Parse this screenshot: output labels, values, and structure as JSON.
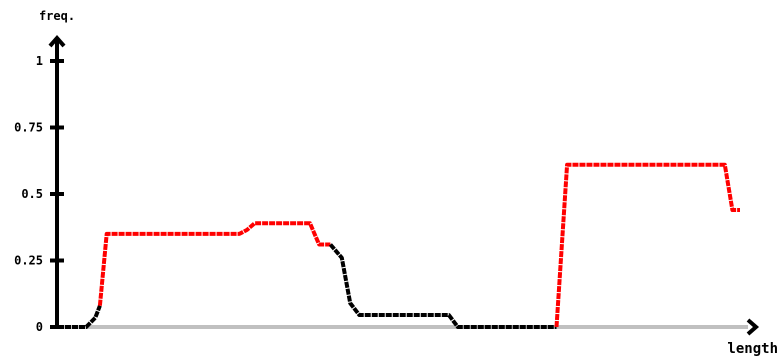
{
  "chart_data": {
    "type": "line",
    "xlabel": "length",
    "ylabel": "freq.",
    "ylim": [
      0,
      1
    ],
    "yticks": [
      {
        "value": 0,
        "label": "0"
      },
      {
        "value": 0.25,
        "label": "0.25"
      },
      {
        "value": 0.5,
        "label": "0.5"
      },
      {
        "value": 0.75,
        "label": "0.75"
      },
      {
        "value": 1,
        "label": "1"
      }
    ],
    "grid": false,
    "legend": "none",
    "colors": {
      "axis": "#000000",
      "baseline": "#c0c0c0",
      "segment_red": "#ff0000",
      "segment_black": "#000000"
    },
    "series": [
      {
        "points": [
          {
            "x": 0.0,
            "y": 0.0,
            "c": "black"
          },
          {
            "x": 2.8,
            "y": 0.0,
            "c": "black"
          },
          {
            "x": 4.0,
            "y": 0.035,
            "c": "black"
          },
          {
            "x": 4.6,
            "y": 0.08,
            "c": "red"
          },
          {
            "x": 5.5,
            "y": 0.35,
            "c": "red"
          },
          {
            "x": 23.0,
            "y": 0.35,
            "c": "red"
          },
          {
            "x": 24.0,
            "y": 0.365,
            "c": "red"
          },
          {
            "x": 25.0,
            "y": 0.39,
            "c": "red"
          },
          {
            "x": 32.3,
            "y": 0.39,
            "c": "red"
          },
          {
            "x": 33.5,
            "y": 0.31,
            "c": "red"
          },
          {
            "x": 35.0,
            "y": 0.31,
            "c": "black"
          },
          {
            "x": 36.5,
            "y": 0.26,
            "c": "black"
          },
          {
            "x": 37.6,
            "y": 0.09,
            "c": "black"
          },
          {
            "x": 38.8,
            "y": 0.045,
            "c": "black"
          },
          {
            "x": 50.6,
            "y": 0.045,
            "c": "black"
          },
          {
            "x": 51.8,
            "y": 0.0,
            "c": "black"
          },
          {
            "x": 64.8,
            "y": 0.0,
            "c": "red"
          },
          {
            "x": 66.2,
            "y": 0.61,
            "c": "red"
          },
          {
            "x": 87.0,
            "y": 0.61,
            "c": "red"
          },
          {
            "x": 88.0,
            "y": 0.44,
            "c": "red"
          },
          {
            "x": 89.0,
            "y": 0.44,
            "c": "red"
          }
        ]
      }
    ]
  }
}
